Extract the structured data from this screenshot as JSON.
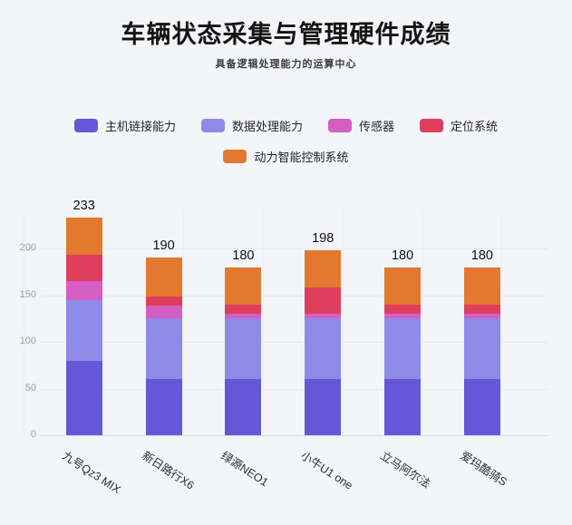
{
  "page": {
    "title": "车辆状态采集与管理硬件成绩",
    "subtitle": "具备逻辑处理能力的运算中心"
  },
  "chart_data": {
    "type": "bar",
    "stacked": true,
    "title": "车辆状态采集与管理硬件成绩",
    "subtitle": "具备逻辑处理能力的运算中心",
    "categories": [
      "九号Qz3 MIX",
      "新日路行X6",
      "绿源NEO1",
      "小牛U1 one",
      "立马阿尔法",
      "爱玛酷骑S"
    ],
    "series": [
      {
        "name": "主机链接能力",
        "color": "#6557d8",
        "values": [
          80,
          60,
          60,
          60,
          60,
          60
        ]
      },
      {
        "name": "数据处理能力",
        "color": "#8e8ae8",
        "values": [
          65,
          65,
          65,
          65,
          65,
          65
        ]
      },
      {
        "name": "传感器",
        "color": "#d55ec4",
        "values": [
          20,
          14,
          5,
          5,
          5,
          5
        ]
      },
      {
        "name": "定位系统",
        "color": "#de3e5c",
        "values": [
          28,
          10,
          10,
          28,
          10,
          10
        ]
      },
      {
        "name": "动力智能控制系统",
        "color": "#e2792f",
        "values": [
          40,
          41,
          40,
          40,
          40,
          40
        ]
      }
    ],
    "totals": [
      233,
      190,
      180,
      198,
      180,
      180
    ],
    "yticks": [
      0,
      50,
      100,
      150,
      200
    ],
    "ylim": [
      0,
      240
    ],
    "grid": true,
    "legend_position": "top",
    "xlabel": "",
    "ylabel": ""
  }
}
